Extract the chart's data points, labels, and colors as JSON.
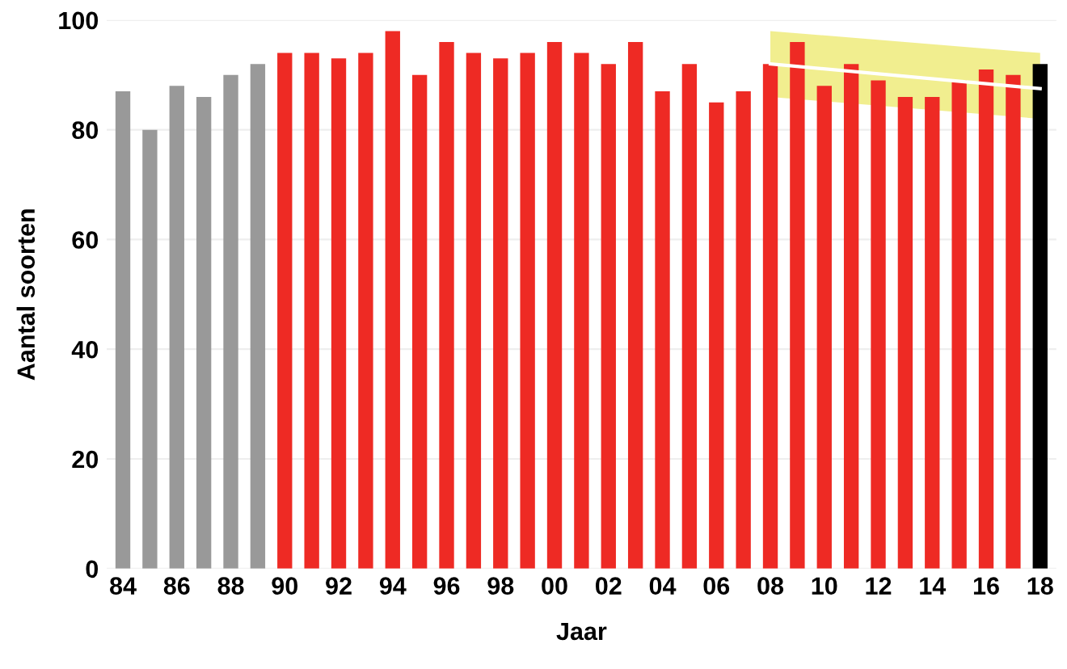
{
  "chart_data": {
    "type": "bar",
    "xlabel": "Jaar",
    "ylabel": "Aantal soorten",
    "categories": [
      "84",
      null,
      "86",
      null,
      "88",
      null,
      "90",
      null,
      "92",
      null,
      "94",
      null,
      "96",
      null,
      "98",
      null,
      "00",
      null,
      "02",
      null,
      "04",
      null,
      "06",
      null,
      "08",
      null,
      "10",
      null,
      "12",
      null,
      "14",
      null,
      "16",
      null,
      "18"
    ],
    "series": [
      {
        "values": [
          87,
          80,
          88,
          86,
          90,
          92,
          94,
          94,
          93,
          94,
          98,
          90,
          96,
          94,
          93,
          94,
          96,
          94,
          92,
          96,
          87,
          92,
          85,
          87,
          92,
          96,
          88,
          92,
          89,
          86,
          86,
          89,
          91,
          90,
          92
        ],
        "colors": [
          "#999999",
          "#999999",
          "#999999",
          "#999999",
          "#999999",
          "#999999",
          "#ee2a24",
          "#ee2a24",
          "#ee2a24",
          "#ee2a24",
          "#ee2a24",
          "#ee2a24",
          "#ee2a24",
          "#ee2a24",
          "#ee2a24",
          "#ee2a24",
          "#ee2a24",
          "#ee2a24",
          "#ee2a24",
          "#ee2a24",
          "#ee2a24",
          "#ee2a24",
          "#ee2a24",
          "#ee2a24",
          "#ee2a24",
          "#ee2a24",
          "#ee2a24",
          "#ee2a24",
          "#ee2a24",
          "#ee2a24",
          "#ee2a24",
          "#ee2a24",
          "#ee2a24",
          "#ee2a24",
          "#000000"
        ]
      },
      {
        "type": "line",
        "color": "#ffffff",
        "values": [
          null,
          null,
          null,
          null,
          null,
          null,
          null,
          null,
          null,
          null,
          null,
          null,
          null,
          null,
          null,
          null,
          null,
          null,
          null,
          null,
          null,
          null,
          null,
          null,
          92,
          null,
          null,
          null,
          null,
          null,
          null,
          null,
          null,
          null,
          87.5
        ],
        "lower": [
          null,
          null,
          null,
          null,
          null,
          null,
          null,
          null,
          null,
          null,
          null,
          null,
          null,
          null,
          null,
          null,
          null,
          null,
          null,
          null,
          null,
          null,
          null,
          null,
          86,
          null,
          null,
          null,
          null,
          null,
          null,
          null,
          null,
          null,
          82
        ],
        "upper": [
          null,
          null,
          null,
          null,
          null,
          null,
          null,
          null,
          null,
          null,
          null,
          null,
          null,
          null,
          null,
          null,
          null,
          null,
          null,
          null,
          null,
          null,
          null,
          null,
          98,
          null,
          null,
          null,
          null,
          null,
          null,
          null,
          null,
          null,
          94
        ]
      }
    ],
    "ylim": [
      0,
      100
    ],
    "yticks": [
      0,
      20,
      40,
      60,
      80,
      100
    ],
    "grid": "y",
    "legend": false
  }
}
